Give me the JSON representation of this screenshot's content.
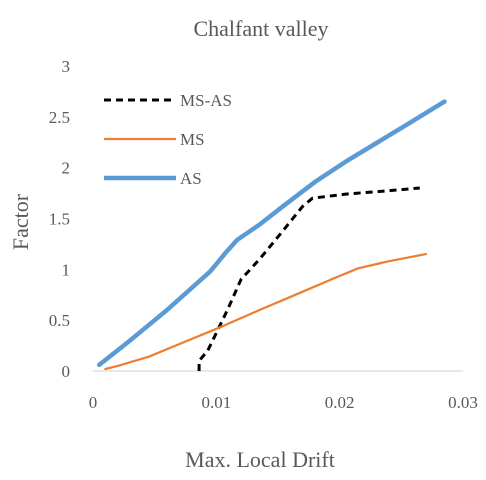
{
  "chart_data": {
    "type": "line",
    "title": "Chalfant valley",
    "xlabel": "Max. Local Drift",
    "ylabel": "Factor",
    "xlim": [
      0,
      0.03
    ],
    "ylim": [
      0,
      3
    ],
    "x_ticks": [
      "0",
      "0.01",
      "0.02",
      "0.03"
    ],
    "y_ticks": [
      "0",
      "0.5",
      "1",
      "1.5",
      "2",
      "2.5",
      "3"
    ],
    "grid": false,
    "legend_position": "top-left",
    "series": [
      {
        "name": "MS-AS",
        "color": "#000000",
        "style": "dashed",
        "points": [
          [
            0.0086,
            0.0
          ],
          [
            0.0086,
            0.1
          ],
          [
            0.0093,
            0.2
          ],
          [
            0.0101,
            0.4
          ],
          [
            0.0109,
            0.6
          ],
          [
            0.012,
            0.9
          ],
          [
            0.0135,
            1.1
          ],
          [
            0.0152,
            1.35
          ],
          [
            0.017,
            1.62
          ],
          [
            0.0178,
            1.7
          ],
          [
            0.0205,
            1.74
          ],
          [
            0.0236,
            1.77
          ],
          [
            0.0265,
            1.8
          ]
        ]
      },
      {
        "name": "MS",
        "color": "#ED7D31",
        "style": "solid",
        "points": [
          [
            0.001,
            0.02
          ],
          [
            0.002,
            0.05
          ],
          [
            0.0045,
            0.14
          ],
          [
            0.0075,
            0.29
          ],
          [
            0.0105,
            0.44
          ],
          [
            0.0135,
            0.6
          ],
          [
            0.017,
            0.78
          ],
          [
            0.0195,
            0.91
          ],
          [
            0.0215,
            1.01
          ],
          [
            0.024,
            1.08
          ],
          [
            0.027,
            1.15
          ]
        ]
      },
      {
        "name": "AS",
        "color": "#5B9BD5",
        "style": "solid",
        "points": [
          [
            0.0005,
            0.06
          ],
          [
            0.003,
            0.3
          ],
          [
            0.006,
            0.6
          ],
          [
            0.0095,
            0.98
          ],
          [
            0.0108,
            1.17
          ],
          [
            0.0117,
            1.29
          ],
          [
            0.0135,
            1.44
          ],
          [
            0.0155,
            1.63
          ],
          [
            0.018,
            1.86
          ],
          [
            0.0205,
            2.06
          ],
          [
            0.025,
            2.39
          ],
          [
            0.0285,
            2.65
          ]
        ]
      }
    ]
  }
}
